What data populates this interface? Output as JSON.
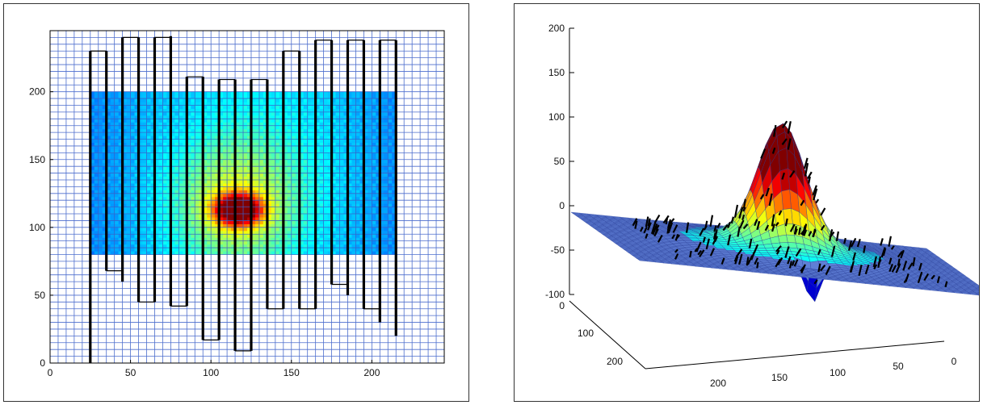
{
  "chart_data": [
    {
      "type": "heatmap",
      "title": "",
      "xlabel": "",
      "ylabel": "",
      "xlim": [
        0,
        245
      ],
      "ylim": [
        0,
        245
      ],
      "x_ticks": [
        "0",
        "50",
        "100",
        "150",
        "200"
      ],
      "y_ticks": [
        "0",
        "50",
        "100",
        "150",
        "200"
      ],
      "x_tick_values": [
        0,
        50,
        100,
        150,
        200
      ],
      "y_tick_values": [
        0,
        50,
        100,
        150,
        200
      ],
      "grid": true,
      "grid_color": "#3a5fc8",
      "colormap": "jet",
      "heat_region": {
        "x": [
          25,
          215
        ],
        "y": [
          80,
          200
        ]
      },
      "hotspot": {
        "x": 117,
        "y": 113,
        "value": 1.0
      },
      "lines": [
        {
          "x": 25,
          "y": [
            0,
            230
          ]
        },
        {
          "x": 35,
          "y": [
            68,
            230
          ]
        },
        {
          "x": 45,
          "y": [
            60,
            240
          ]
        },
        {
          "x": 55,
          "y": [
            45,
            240
          ]
        },
        {
          "x": 65,
          "y": [
            45,
            240
          ]
        },
        {
          "x": 75,
          "y": [
            42,
            241
          ]
        },
        {
          "x": 85,
          "y": [
            42,
            211
          ]
        },
        {
          "x": 95,
          "y": [
            17,
            211
          ]
        },
        {
          "x": 105,
          "y": [
            17,
            209
          ]
        },
        {
          "x": 115,
          "y": [
            9,
            209
          ]
        },
        {
          "x": 125,
          "y": [
            9,
            209
          ]
        },
        {
          "x": 135,
          "y": [
            40,
            209
          ]
        },
        {
          "x": 145,
          "y": [
            40,
            230
          ]
        },
        {
          "x": 155,
          "y": [
            40,
            230
          ]
        },
        {
          "x": 165,
          "y": [
            40,
            238
          ]
        },
        {
          "x": 175,
          "y": [
            58,
            238
          ]
        },
        {
          "x": 185,
          "y": [
            50,
            238
          ]
        },
        {
          "x": 195,
          "y": [
            40,
            238
          ]
        },
        {
          "x": 205,
          "y": [
            30,
            238
          ]
        },
        {
          "x": 215,
          "y": [
            20,
            238
          ]
        }
      ]
    },
    {
      "type": "surface",
      "title": "",
      "xlabel": "",
      "ylabel": "",
      "zlabel": "",
      "x_ticks": [
        "0",
        "50",
        "100",
        "150",
        "200"
      ],
      "y_ticks": [
        "0",
        "100",
        "200"
      ],
      "z_ticks": [
        "200",
        "150",
        "100",
        "50",
        "0",
        "-50",
        "-100"
      ],
      "z_tick_values": [
        200,
        150,
        100,
        50,
        0,
        -50,
        -100
      ],
      "zlim": [
        -100,
        200
      ],
      "colormap": "jet",
      "peak": {
        "x": 120,
        "y": 110,
        "z": 125
      },
      "trough": {
        "z": -45
      }
    }
  ]
}
